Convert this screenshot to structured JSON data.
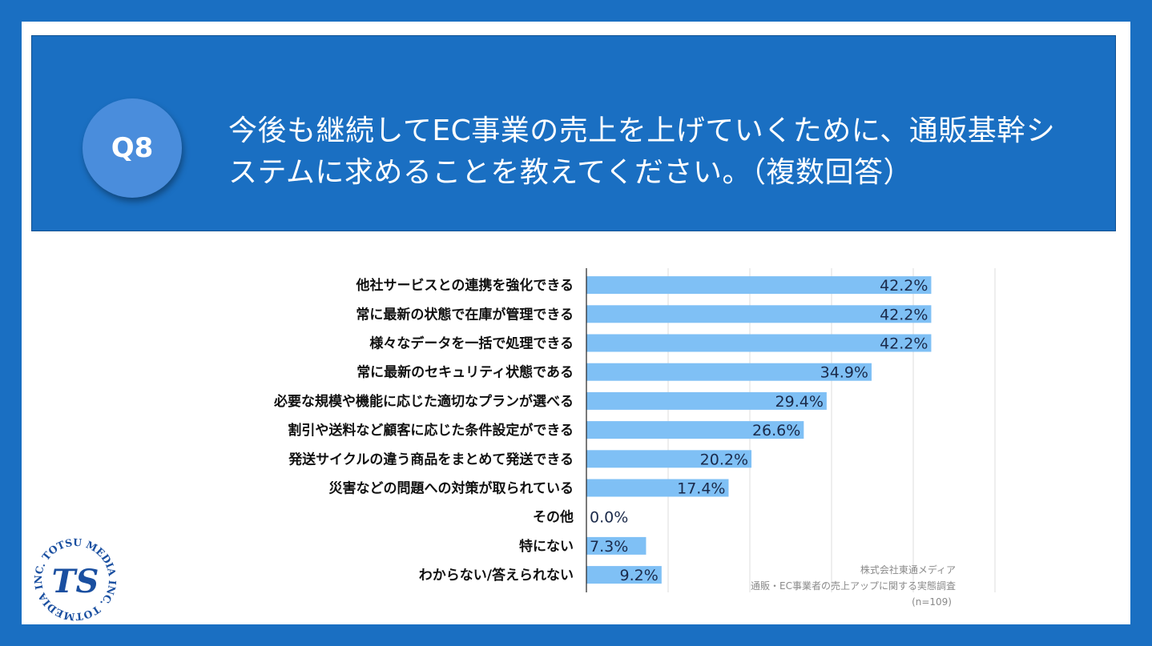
{
  "question": {
    "badge": "Q8",
    "text": "今後も継続してEC事業の売上を上げていくために、通販基幹システムに求めることを教えてください。（複数回答）"
  },
  "chart_data": {
    "type": "bar",
    "orientation": "horizontal",
    "categories": [
      "他社サービスとの連携を強化できる",
      "常に最新の状態で在庫が管理できる",
      "様々なデータを一括で処理できる",
      "常に最新のセキュリティ状態である",
      "必要な規模や機能に応じた適切なプランが選べる",
      "割引や送料など顧客に応じた条件設定ができる",
      "発送サイクルの違う商品をまとめて発送できる",
      "災害などの問題への対策が取られている",
      "その他",
      "特にない",
      "わからない/答えられない"
    ],
    "values": [
      42.2,
      42.2,
      42.2,
      34.9,
      29.4,
      26.6,
      20.2,
      17.4,
      0.0,
      7.3,
      9.2
    ],
    "value_labels": [
      "42.2%",
      "42.2%",
      "42.2%",
      "34.9%",
      "29.4%",
      "26.6%",
      "20.2%",
      "17.4%",
      "0.0%",
      "7.3%",
      "9.2%"
    ],
    "xlim": [
      0,
      50
    ],
    "grid": true,
    "bar_color": "#7fc0f5",
    "source": {
      "line1": "株式会社東通メディア",
      "line2": "通販・EC事業者の売上アップに関する実態調査",
      "line3": "(n=109)"
    }
  },
  "logo": {
    "ring_text": "MEDIA INC. TOTSU MEDIA INC. TOTSU ",
    "mark": "TS"
  },
  "colors": {
    "frame": "#1a6fc2",
    "badge": "#4a8ddc",
    "bar": "#7fc0f5"
  }
}
